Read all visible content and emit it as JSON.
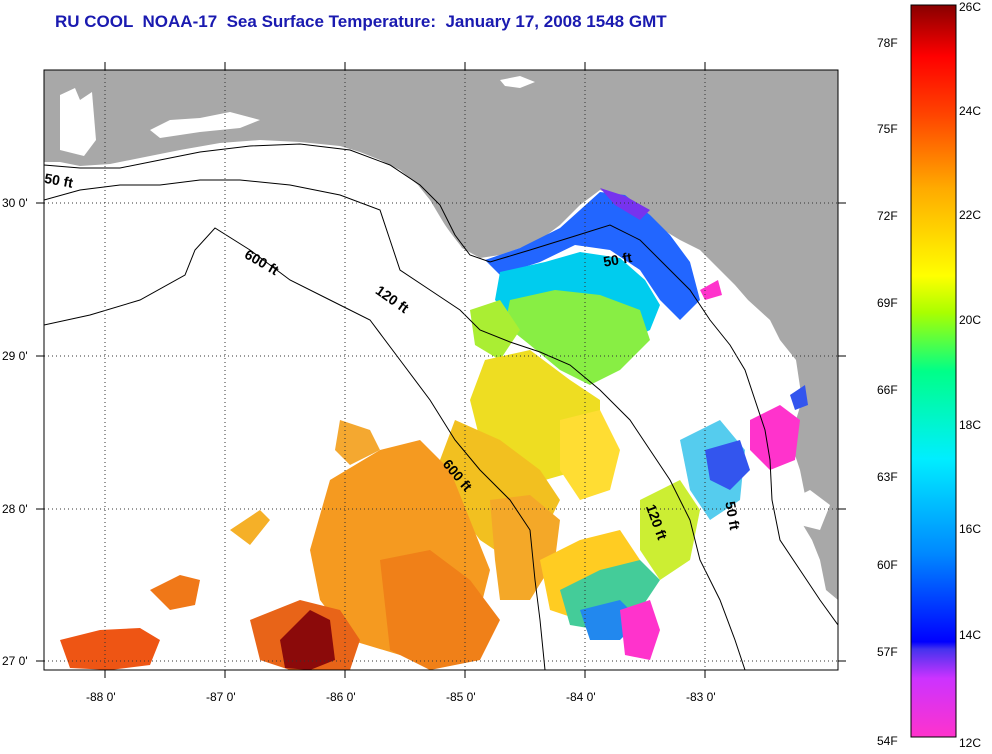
{
  "title": "RU COOL  NOAA-17  Sea Surface Temperature:  January 17, 2008 1548 GMT",
  "axes": {
    "longitude_labels": [
      "-88 0'",
      "-87 0'",
      "-86 0'",
      "-85 0'",
      "-84 0'",
      "-83 0'"
    ],
    "latitude_labels": [
      "30 0'",
      "29 0'",
      "28 0'",
      "27 0'"
    ]
  },
  "contours": {
    "labels": [
      "50 ft",
      "600 ft",
      "120 ft",
      "50 ft",
      "600 ft",
      "120 ft",
      "50 ft"
    ]
  },
  "colorbar": {
    "fahrenheit_labels": [
      "78F",
      "75F",
      "72F",
      "69F",
      "66F",
      "63F",
      "60F",
      "57F",
      "54F"
    ],
    "celsius_labels": [
      "26C",
      "24C",
      "22C",
      "20C",
      "18C",
      "16C",
      "14C",
      "12C"
    ]
  },
  "colors": {
    "land": "#a8a8a8",
    "title": "#1a1ab0",
    "cold": "#ff33cc",
    "warm": "#8b0000"
  }
}
